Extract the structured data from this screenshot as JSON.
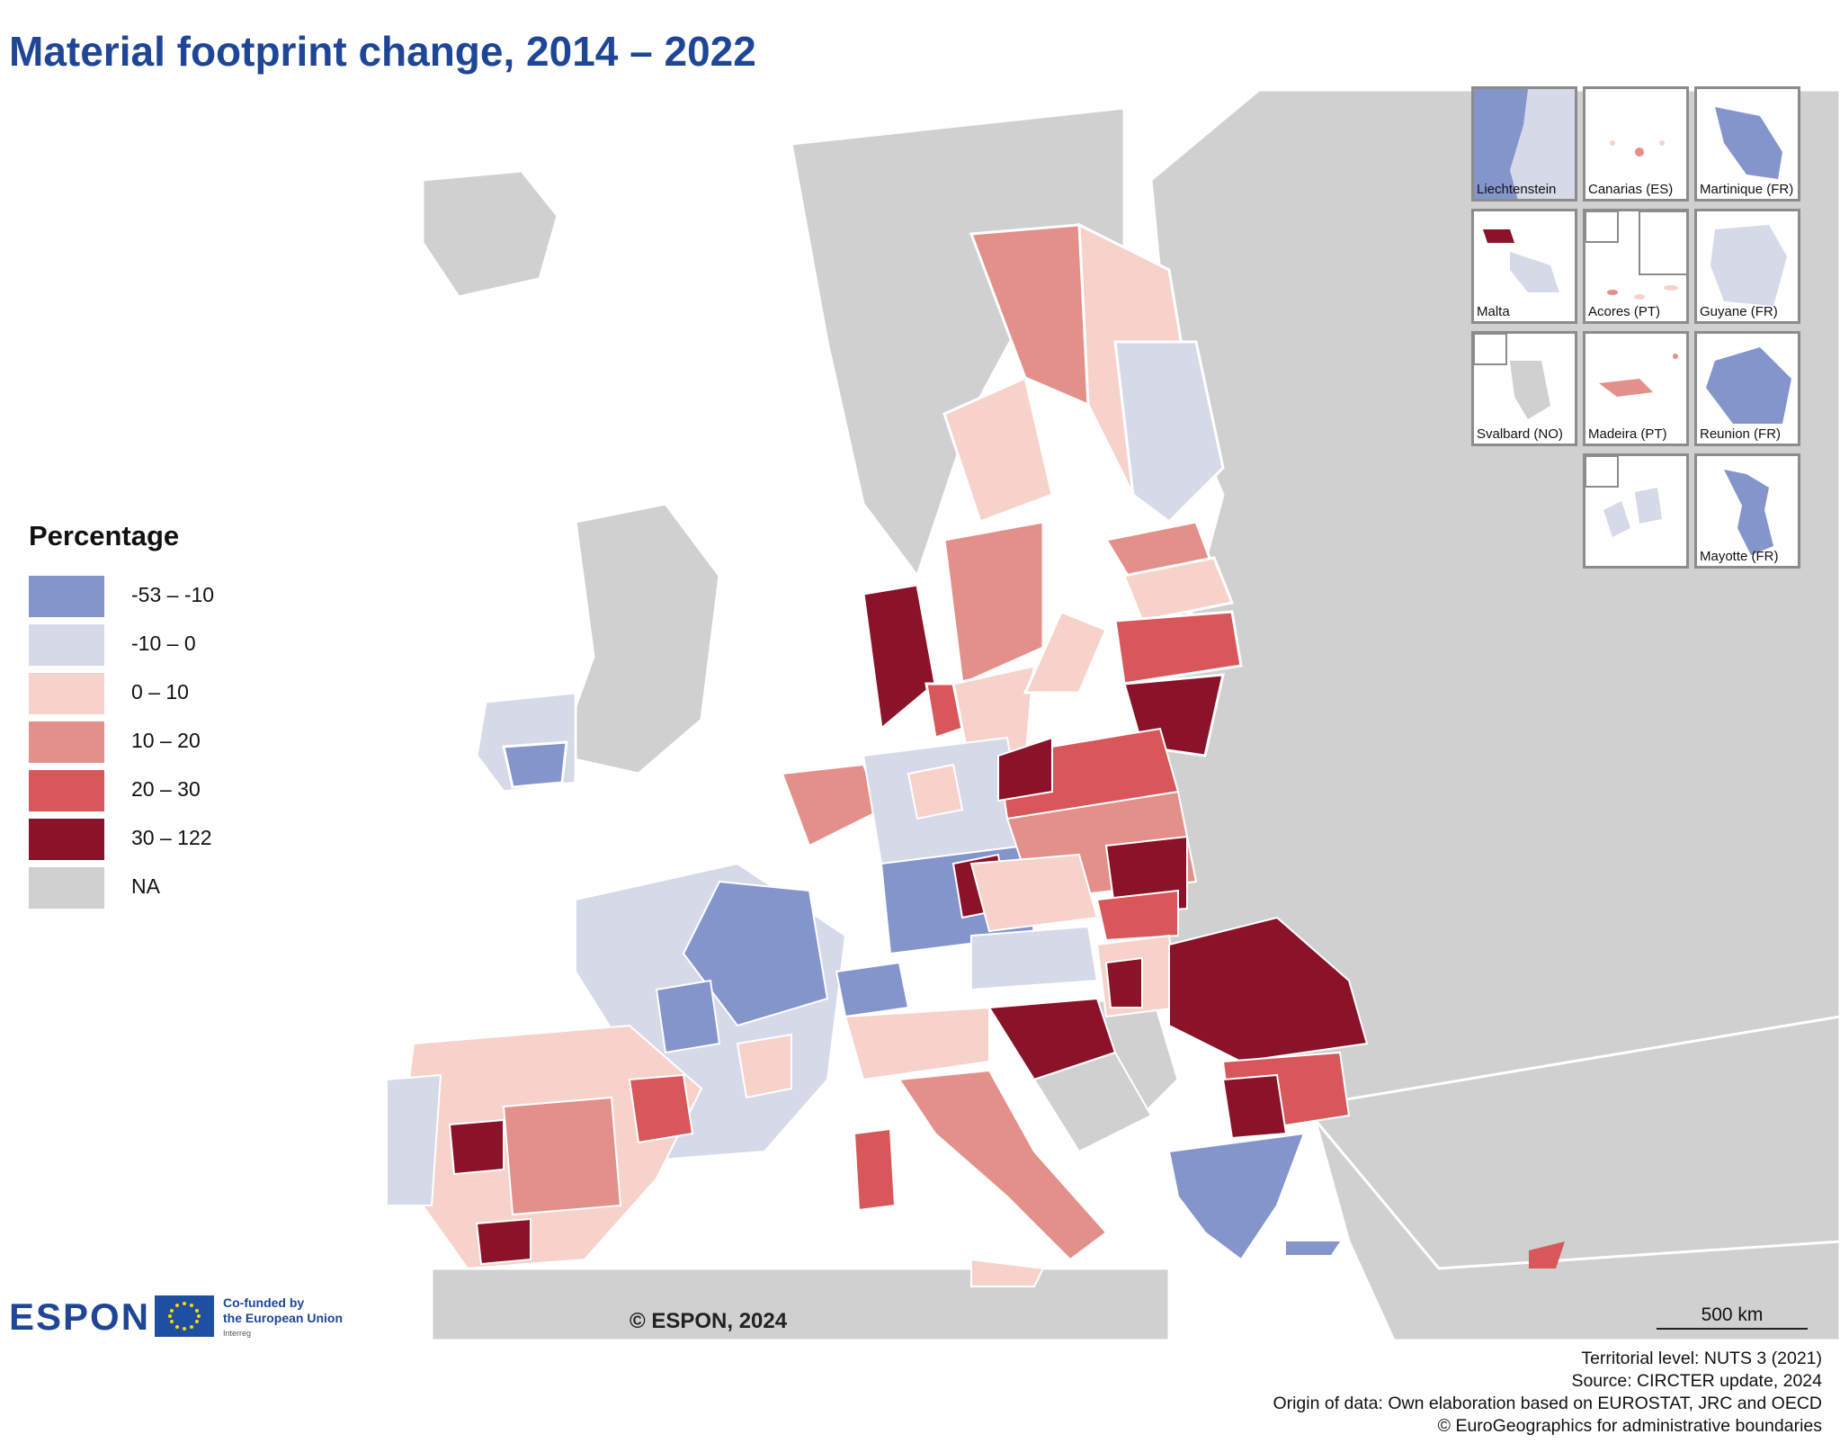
{
  "title": "Material footprint change, 2014 – 2022",
  "legend": {
    "title": "Percentage",
    "items": [
      {
        "label": "-53 – -10",
        "color": "#8395cb"
      },
      {
        "label": "-10 – 0",
        "color": "#d5d9e8"
      },
      {
        "label": "0 – 10",
        "color": "#f6d2cb"
      },
      {
        "label": "10 – 20",
        "color": "#e38f8a"
      },
      {
        "label": "20 – 30",
        "color": "#d7575b"
      },
      {
        "label": "30 – 122",
        "color": "#8a1229"
      },
      {
        "label": "NA",
        "color": "#d0d0d0"
      }
    ]
  },
  "insets": [
    {
      "label": "Liechtenstein"
    },
    {
      "label": "Canarias (ES)"
    },
    {
      "label": "Martinique (FR)"
    },
    {
      "label": "Malta"
    },
    {
      "label": "Acores (PT)"
    },
    {
      "label": "Guyane (FR)"
    },
    {
      "label": "Svalbard (NO)"
    },
    {
      "label": "Madeira (PT)"
    },
    {
      "label": "Reunion (FR)"
    },
    {
      "label": ""
    },
    {
      "label": "Mayotte (FR)"
    }
  ],
  "branding": {
    "espon": "ESPON",
    "eu_line1": "Co-funded by",
    "eu_line2": "the European Union",
    "eu_sub": "Interreg",
    "copyright": "© ESPON, 2024"
  },
  "scale": {
    "label": "500 km"
  },
  "footer": {
    "line1": "Territorial level: NUTS 3 (2021)",
    "line2": "Source: CIRCTER update, 2024",
    "line3": "Origin of data: Own elaboration based on EUROSTAT, JRC and OECD",
    "line4": "© EuroGeographics for administrative boundaries"
  },
  "colors": {
    "sea": "#ffffff",
    "non_eu_land": "#d0d0d0",
    "title": "#1f4696"
  }
}
